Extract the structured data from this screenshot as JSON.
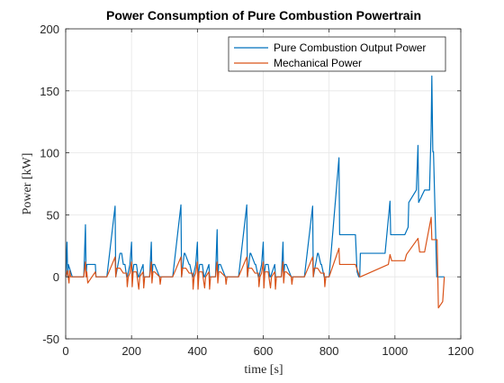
{
  "chart_data": {
    "type": "line",
    "title": "Power Consumption of Pure Combustion Powertrain",
    "xlabel": "time [s]",
    "ylabel": "Power [kW]",
    "xlim": [
      0,
      1200
    ],
    "ylim": [
      -50,
      200
    ],
    "xticks": [
      "0",
      "200",
      "400",
      "600",
      "800",
      "1000",
      "1200"
    ],
    "yticks": [
      "-50",
      "0",
      "50",
      "100",
      "150",
      "200"
    ],
    "xtick_values": [
      0,
      200,
      400,
      600,
      800,
      1000,
      1200
    ],
    "ytick_values": [
      -50,
      0,
      50,
      100,
      150,
      200
    ],
    "grid": true,
    "legend_position": "top-right",
    "series": [
      {
        "name": "Pure Combustion Output Power",
        "color": "#0072BD",
        "x": [
          0,
          4,
          6,
          8,
          20,
          55,
          60,
          62,
          64,
          90,
          92,
          125,
          150,
          152,
          165,
          170,
          175,
          180,
          185,
          187,
          195,
          200,
          202,
          207,
          215,
          220,
          222,
          235,
          237,
          255,
          260,
          262,
          265,
          270,
          285,
          287,
          325,
          350,
          352,
          360,
          362,
          375,
          377,
          385,
          387,
          395,
          400,
          402,
          407,
          415,
          420,
          422,
          435,
          437,
          455,
          460,
          462,
          465,
          470,
          485,
          487,
          525,
          550,
          552,
          560,
          562,
          575,
          577,
          585,
          587,
          595,
          600,
          602,
          607,
          615,
          620,
          622,
          635,
          637,
          655,
          660,
          662,
          665,
          670,
          685,
          687,
          725,
          750,
          752,
          765,
          767,
          775,
          777,
          785,
          787,
          800,
          830,
          832,
          880,
          885,
          890,
          893,
          895,
          970,
          985,
          987,
          1030,
          1040,
          1042,
          1065,
          1070,
          1072,
          1090,
          1105,
          1110,
          1112,
          1115,
          1117,
          1127,
          1130,
          1135,
          1150
        ],
        "y": [
          0,
          28,
          0,
          10,
          0,
          0,
          42,
          0,
          10,
          10,
          0,
          0,
          57,
          0,
          19,
          19,
          10,
          10,
          0,
          0,
          10,
          28,
          0,
          10,
          10,
          0,
          0,
          10,
          0,
          0,
          28,
          0,
          10,
          10,
          0,
          0,
          0,
          58,
          0,
          19,
          19,
          10,
          10,
          0,
          0,
          10,
          28,
          0,
          10,
          10,
          0,
          0,
          10,
          0,
          0,
          38,
          0,
          10,
          10,
          0,
          0,
          0,
          58,
          0,
          19,
          19,
          10,
          10,
          0,
          0,
          10,
          28,
          0,
          10,
          10,
          0,
          0,
          10,
          0,
          0,
          28,
          0,
          10,
          10,
          0,
          0,
          0,
          57,
          0,
          19,
          19,
          10,
          10,
          0,
          0,
          0,
          96,
          34,
          34,
          4,
          0,
          0,
          19,
          19,
          61,
          34,
          34,
          40,
          60,
          70,
          106,
          60,
          70,
          70,
          120,
          162,
          101,
          101,
          0,
          0,
          0,
          0
        ]
      },
      {
        "name": "Mechanical Power",
        "color": "#D95319",
        "x": [
          0,
          5,
          10,
          12,
          15,
          25,
          55,
          60,
          62,
          64,
          67,
          90,
          92,
          125,
          150,
          152,
          155,
          165,
          175,
          185,
          187,
          190,
          195,
          200,
          202,
          205,
          215,
          222,
          225,
          235,
          237,
          240,
          255,
          260,
          262,
          265,
          270,
          285,
          287,
          290,
          325,
          350,
          352,
          355,
          365,
          375,
          385,
          387,
          390,
          395,
          400,
          402,
          405,
          415,
          422,
          425,
          435,
          437,
          440,
          455,
          460,
          462,
          465,
          470,
          485,
          487,
          490,
          525,
          550,
          552,
          555,
          565,
          575,
          585,
          587,
          590,
          595,
          600,
          602,
          605,
          615,
          622,
          625,
          635,
          637,
          640,
          655,
          660,
          662,
          665,
          670,
          685,
          687,
          690,
          725,
          750,
          752,
          755,
          765,
          775,
          785,
          787,
          790,
          800,
          830,
          832,
          880,
          893,
          895,
          980,
          985,
          990,
          1030,
          1035,
          1070,
          1075,
          1090,
          1110,
          1112,
          1128,
          1132,
          1145,
          1150
        ],
        "y": [
          0,
          5,
          -5,
          5,
          0,
          0,
          0,
          12,
          0,
          4,
          -5,
          4,
          0,
          0,
          16,
          0,
          7,
          7,
          3,
          3,
          -8,
          0,
          3,
          12,
          -8,
          4,
          4,
          -10,
          0,
          4,
          -9,
          0,
          0,
          12,
          -5,
          4,
          4,
          0,
          -6,
          0,
          0,
          16,
          0,
          7,
          7,
          3,
          3,
          -10,
          0,
          3,
          12,
          -10,
          4,
          4,
          -9,
          0,
          4,
          -10,
          0,
          0,
          12,
          -5,
          4,
          4,
          0,
          -6,
          0,
          0,
          16,
          0,
          7,
          7,
          3,
          3,
          -8,
          0,
          3,
          12,
          -9,
          4,
          4,
          -9,
          0,
          4,
          -10,
          0,
          0,
          12,
          -5,
          4,
          4,
          0,
          -6,
          0,
          0,
          16,
          0,
          7,
          7,
          3,
          3,
          -8,
          0,
          0,
          23,
          10,
          10,
          0,
          0,
          10,
          18,
          13,
          13,
          18,
          31,
          20,
          20,
          48,
          30,
          30,
          -25,
          -20,
          0
        ]
      }
    ]
  }
}
